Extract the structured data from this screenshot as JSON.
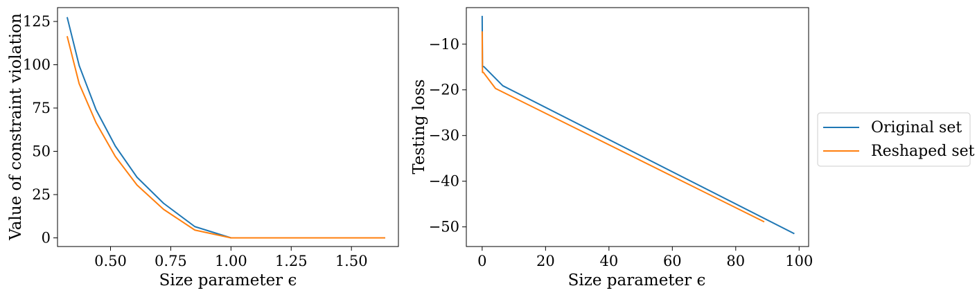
{
  "chart_data": [
    {
      "type": "line",
      "xlabel": "Size parameter ϵ",
      "ylabel": "Value of constraint violation",
      "xlim": [
        0.28,
        1.695
      ],
      "ylim": [
        -5,
        133
      ],
      "xticks": [
        0.5,
        0.75,
        1.0,
        1.25,
        1.5
      ],
      "xtick_labels": [
        "0.50",
        "0.75",
        "1.00",
        "1.25",
        "1.50"
      ],
      "yticks": [
        0,
        25,
        50,
        75,
        100,
        125
      ],
      "ytick_labels": [
        "0",
        "25",
        "50",
        "75",
        "100",
        "125"
      ],
      "grid": false,
      "series": [
        {
          "name": "Original set",
          "color": "#1f77b4",
          "x": [
            0.32,
            0.37,
            0.44,
            0.52,
            0.61,
            0.72,
            0.85,
            1.0,
            1.25,
            1.64
          ],
          "y": [
            127.5,
            99.5,
            74,
            53,
            35,
            20,
            6.5,
            0,
            0,
            0
          ]
        },
        {
          "name": "Reshaped set",
          "color": "#ff7f0e",
          "x": [
            0.32,
            0.37,
            0.44,
            0.52,
            0.61,
            0.72,
            0.85,
            1.0,
            1.25,
            1.64
          ],
          "y": [
            116.5,
            89,
            66.5,
            47,
            30.5,
            16.5,
            4.5,
            0,
            0,
            0
          ]
        }
      ]
    },
    {
      "type": "line",
      "xlabel": "Size parameter ϵ",
      "ylabel": "Testing loss",
      "xlim": [
        -5,
        103
      ],
      "ylim": [
        -54.3,
        -2
      ],
      "xticks": [
        0,
        20,
        40,
        60,
        80,
        100
      ],
      "xtick_labels": [
        "0",
        "20",
        "40",
        "60",
        "80",
        "100"
      ],
      "yticks": [
        -10,
        -20,
        -30,
        -40,
        -50
      ],
      "ytick_labels": [
        "−10",
        "−20",
        "−30",
        "−40",
        "−50"
      ],
      "grid": false,
      "legend_position": "outside-right",
      "series": [
        {
          "name": "Original set",
          "color": "#1f77b4",
          "x": [
            0,
            0.1,
            0.5,
            6.5,
            98.5
          ],
          "y": [
            -3.8,
            -14.9,
            -14.9,
            -19.1,
            -51.5
          ]
        },
        {
          "name": "Reshaped set",
          "color": "#ff7f0e",
          "x": [
            0,
            0.1,
            0.4,
            4.2,
            89
          ],
          "y": [
            -7.2,
            -16.2,
            -16.2,
            -19.7,
            -48.9
          ]
        }
      ]
    }
  ]
}
